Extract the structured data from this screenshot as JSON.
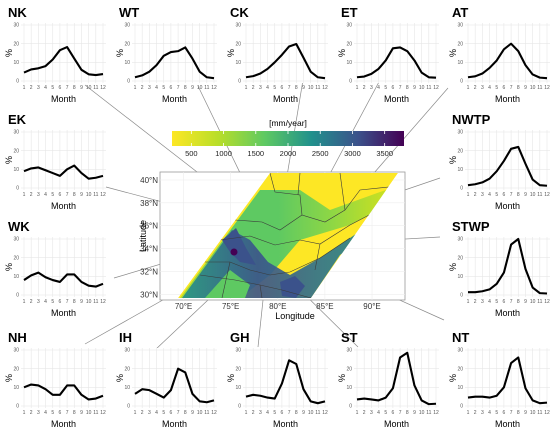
{
  "chart_data": {
    "type": "line",
    "x_label": "Month",
    "y_label": "%",
    "months": [
      1,
      2,
      3,
      4,
      5,
      6,
      7,
      8,
      9,
      10,
      11,
      12
    ],
    "ylim": [
      0,
      30
    ],
    "y_ticks": [
      0,
      10,
      20,
      30
    ],
    "regions": [
      {
        "name": "NK",
        "values": [
          4.5,
          6.2,
          6.8,
          8.0,
          11.5,
          16.5,
          18.2,
          12.0,
          6.0,
          3.6,
          3.2,
          3.7
        ]
      },
      {
        "name": "WT",
        "values": [
          2.0,
          3.0,
          5.0,
          8.5,
          13.5,
          15.5,
          16.0,
          18.0,
          12.0,
          5.0,
          2.0,
          1.5
        ]
      },
      {
        "name": "CK",
        "values": [
          2.0,
          2.6,
          4.0,
          6.5,
          10.0,
          14.0,
          18.5,
          19.8,
          12.5,
          5.0,
          2.0,
          1.5
        ]
      },
      {
        "name": "ET",
        "values": [
          2.0,
          2.4,
          3.8,
          6.5,
          11.0,
          17.5,
          18.0,
          16.0,
          11.0,
          4.5,
          2.0,
          1.8
        ]
      },
      {
        "name": "AT",
        "values": [
          2.0,
          2.5,
          4.0,
          7.0,
          11.0,
          17.0,
          20.0,
          16.0,
          8.5,
          3.5,
          1.8,
          1.5
        ]
      },
      {
        "name": "EK",
        "values": [
          9.0,
          10.5,
          11.0,
          9.5,
          8.0,
          6.5,
          10.0,
          12.0,
          8.0,
          5.0,
          5.5,
          6.5
        ]
      },
      {
        "name": "NWTP",
        "values": [
          1.5,
          2.0,
          3.0,
          5.0,
          9.0,
          14.5,
          21.0,
          22.0,
          13.0,
          4.5,
          1.5,
          1.2
        ]
      },
      {
        "name": "WK",
        "values": [
          8.0,
          10.5,
          12.0,
          9.5,
          8.0,
          7.0,
          11.0,
          11.0,
          7.0,
          5.0,
          4.5,
          6.0
        ]
      },
      {
        "name": "STWP",
        "values": [
          1.5,
          1.5,
          2.0,
          3.0,
          6.0,
          12.0,
          27.0,
          30.0,
          14.0,
          4.0,
          1.0,
          0.8
        ]
      },
      {
        "name": "NH",
        "values": [
          10.0,
          11.5,
          11.0,
          9.0,
          6.0,
          6.0,
          11.0,
          11.0,
          6.0,
          3.5,
          4.0,
          5.5
        ]
      },
      {
        "name": "IH",
        "values": [
          6.5,
          9.0,
          8.5,
          6.5,
          4.5,
          8.5,
          20.0,
          18.0,
          6.5,
          2.5,
          2.0,
          3.0
        ]
      },
      {
        "name": "GH",
        "values": [
          5.0,
          6.0,
          5.5,
          4.5,
          4.0,
          12.0,
          24.5,
          22.5,
          9.0,
          2.5,
          1.5,
          2.5
        ]
      },
      {
        "name": "ST",
        "values": [
          3.5,
          4.0,
          3.5,
          3.0,
          4.5,
          9.5,
          26.0,
          28.5,
          11.0,
          3.0,
          1.0,
          1.2
        ]
      },
      {
        "name": "NT",
        "values": [
          4.5,
          5.0,
          5.0,
          4.5,
          5.5,
          10.0,
          23.0,
          26.0,
          9.5,
          3.0,
          1.5,
          1.8
        ]
      }
    ],
    "map": {
      "colorbar_title": "[mm/year]",
      "colorbar_ticks": [
        "500",
        "1000",
        "1500",
        "2000",
        "2500",
        "3000",
        "3500"
      ],
      "colorbar_values": [
        500,
        1000,
        1500,
        2000,
        2500,
        3000,
        3500
      ],
      "colorbar_range": [
        200,
        3800
      ],
      "colors": [
        "#fde725",
        "#b8de29",
        "#5ec962",
        "#21918c",
        "#3b528b",
        "#440154"
      ],
      "x_label": "Longitude",
      "y_label": "Latitude",
      "x_ticks": [
        "70°E",
        "75°E",
        "80°E",
        "85°E",
        "90°E"
      ],
      "x_tick_values": [
        70,
        75,
        80,
        85,
        90
      ],
      "y_ticks": [
        "30°N",
        "32°N",
        "34°N",
        "36°N",
        "38°N",
        "40°N"
      ],
      "y_tick_values": [
        30,
        32,
        34,
        36,
        38,
        40
      ],
      "xlim": [
        67.5,
        93.5
      ],
      "ylim": [
        29.5,
        40.7
      ]
    }
  }
}
